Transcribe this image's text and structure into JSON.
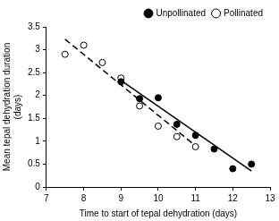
{
  "chart_data": {
    "type": "scatter",
    "x_label": "Time to start of tepal dehydration (days)",
    "y_label": [
      "Mean tepal dehydration duration",
      "(days)"
    ],
    "xlim": [
      7,
      13
    ],
    "xticks": [
      7,
      8,
      9,
      10,
      11,
      12,
      13
    ],
    "ylim": [
      0,
      3.5
    ],
    "yticks": [
      0,
      0.5,
      1,
      1.5,
      2,
      2.5,
      3,
      3.5
    ],
    "grid": false,
    "legend": "top right",
    "series": [
      {
        "name": "Unpollinated",
        "color": "#000000",
        "marker": "filled circle",
        "line_style": "solid",
        "x": [
          9,
          9.5,
          10,
          10.5,
          11,
          11.5,
          12,
          12.5
        ],
        "values": [
          2.3,
          1.93,
          1.95,
          1.37,
          1.13,
          0.83,
          0.4,
          0.5
        ],
        "trend": {
          "x": [
            9,
            12.5
          ],
          "values": [
            2.33,
            0.35
          ]
        }
      },
      {
        "name": "Pollinated",
        "color": "#000000",
        "marker": "open circle",
        "line_style": "dashed",
        "x": [
          7.5,
          8,
          8.5,
          9,
          9.5,
          10,
          10.5,
          11
        ],
        "values": [
          2.9,
          3.1,
          2.72,
          2.38,
          1.77,
          1.33,
          1.1,
          0.88
        ],
        "trend": {
          "x": [
            7.5,
            11
          ],
          "values": [
            3.23,
            0.9
          ]
        }
      }
    ]
  }
}
